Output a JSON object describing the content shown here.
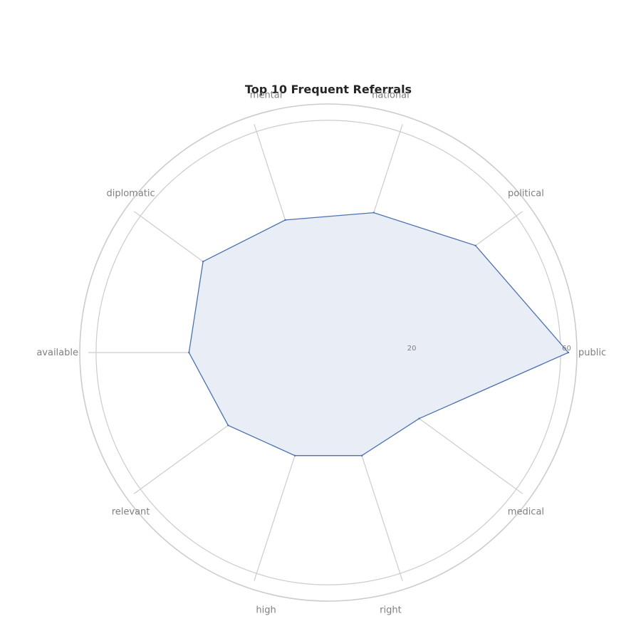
{
  "chart_data": {
    "type": "radar",
    "title": "Top 10 Frequent Referrals",
    "categories": [
      "public",
      "political",
      "national",
      "mental",
      "diplomatic",
      "available",
      "relevant",
      "high",
      "right",
      "medical"
    ],
    "series": [
      {
        "values": [
          62,
          47,
          38,
          36,
          40,
          36,
          32,
          28,
          28,
          29
        ]
      }
    ],
    "rlim": [
      0,
      62
    ],
    "rticks": [
      20,
      60
    ],
    "grid": true,
    "colors": {
      "line": "#4c72b0",
      "fill": "#e9edf6",
      "grid": "#cccccc"
    }
  }
}
